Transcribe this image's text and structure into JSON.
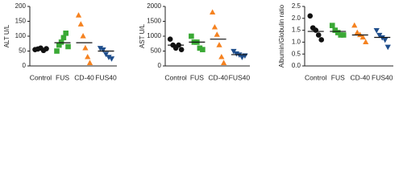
{
  "chart_data": [
    {
      "type": "dot",
      "y_label": "ALT U/L",
      "categories": [
        "Control",
        "FUS",
        "CD-40",
        "FUS40"
      ],
      "colors": [
        "#111111",
        "#3aa935",
        "#f58220",
        "#1f4e8c"
      ],
      "markers": [
        "circle",
        "square",
        "triangle",
        "triangle-down"
      ],
      "values": [
        [
          55,
          57,
          60,
          52,
          58
        ],
        [
          50,
          70,
          80,
          95,
          110,
          65
        ],
        [
          170,
          140,
          100,
          60,
          30,
          10
        ],
        [
          60,
          55,
          40,
          30,
          25
        ]
      ],
      "means": [
        57,
        78,
        78,
        50
      ],
      "ylim": [
        0,
        200
      ],
      "yticks": [
        0,
        50,
        100,
        150,
        200
      ]
    },
    {
      "type": "dot",
      "y_label": "AST U/L",
      "categories": [
        "Control",
        "FUS",
        "CD-40",
        "FUS40"
      ],
      "colors": [
        "#111111",
        "#3aa935",
        "#f58220",
        "#1f4e8c"
      ],
      "markers": [
        "circle",
        "square",
        "triangle",
        "triangle-down"
      ],
      "values": [
        [
          900,
          700,
          600,
          700,
          550
        ],
        [
          1000,
          800,
          800,
          600,
          550
        ],
        [
          1800,
          1300,
          1050,
          700,
          300,
          100
        ],
        [
          500,
          420,
          380,
          300,
          350
        ]
      ],
      "means": [
        700,
        800,
        900,
        380
      ],
      "ylim": [
        0,
        2000
      ],
      "yticks": [
        0,
        500,
        1000,
        1500,
        2000
      ]
    },
    {
      "type": "dot",
      "y_label": "Albumin/Globulin ratio",
      "categories": [
        "Control",
        "FUS",
        "CD-40",
        "FUS40"
      ],
      "colors": [
        "#111111",
        "#3aa935",
        "#f58220",
        "#1f4e8c"
      ],
      "markers": [
        "circle",
        "square",
        "triangle",
        "triangle-down"
      ],
      "values": [
        [
          2.1,
          1.6,
          1.5,
          1.3,
          1.1
        ],
        [
          1.7,
          1.5,
          1.4,
          1.3,
          1.3
        ],
        [
          1.7,
          1.4,
          1.3,
          1.2,
          1.0
        ],
        [
          1.5,
          1.3,
          1.2,
          1.1,
          0.8
        ]
      ],
      "means": [
        1.45,
        1.45,
        1.3,
        1.2
      ],
      "ylim": [
        0,
        2.5
      ],
      "yticks": [
        {
          "value": 0,
          "label": "0.0"
        },
        0.5,
        {
          "value": 1,
          "label": "1.0"
        },
        1.5,
        {
          "value": 2,
          "label": "2.0"
        },
        2.5
      ]
    }
  ]
}
